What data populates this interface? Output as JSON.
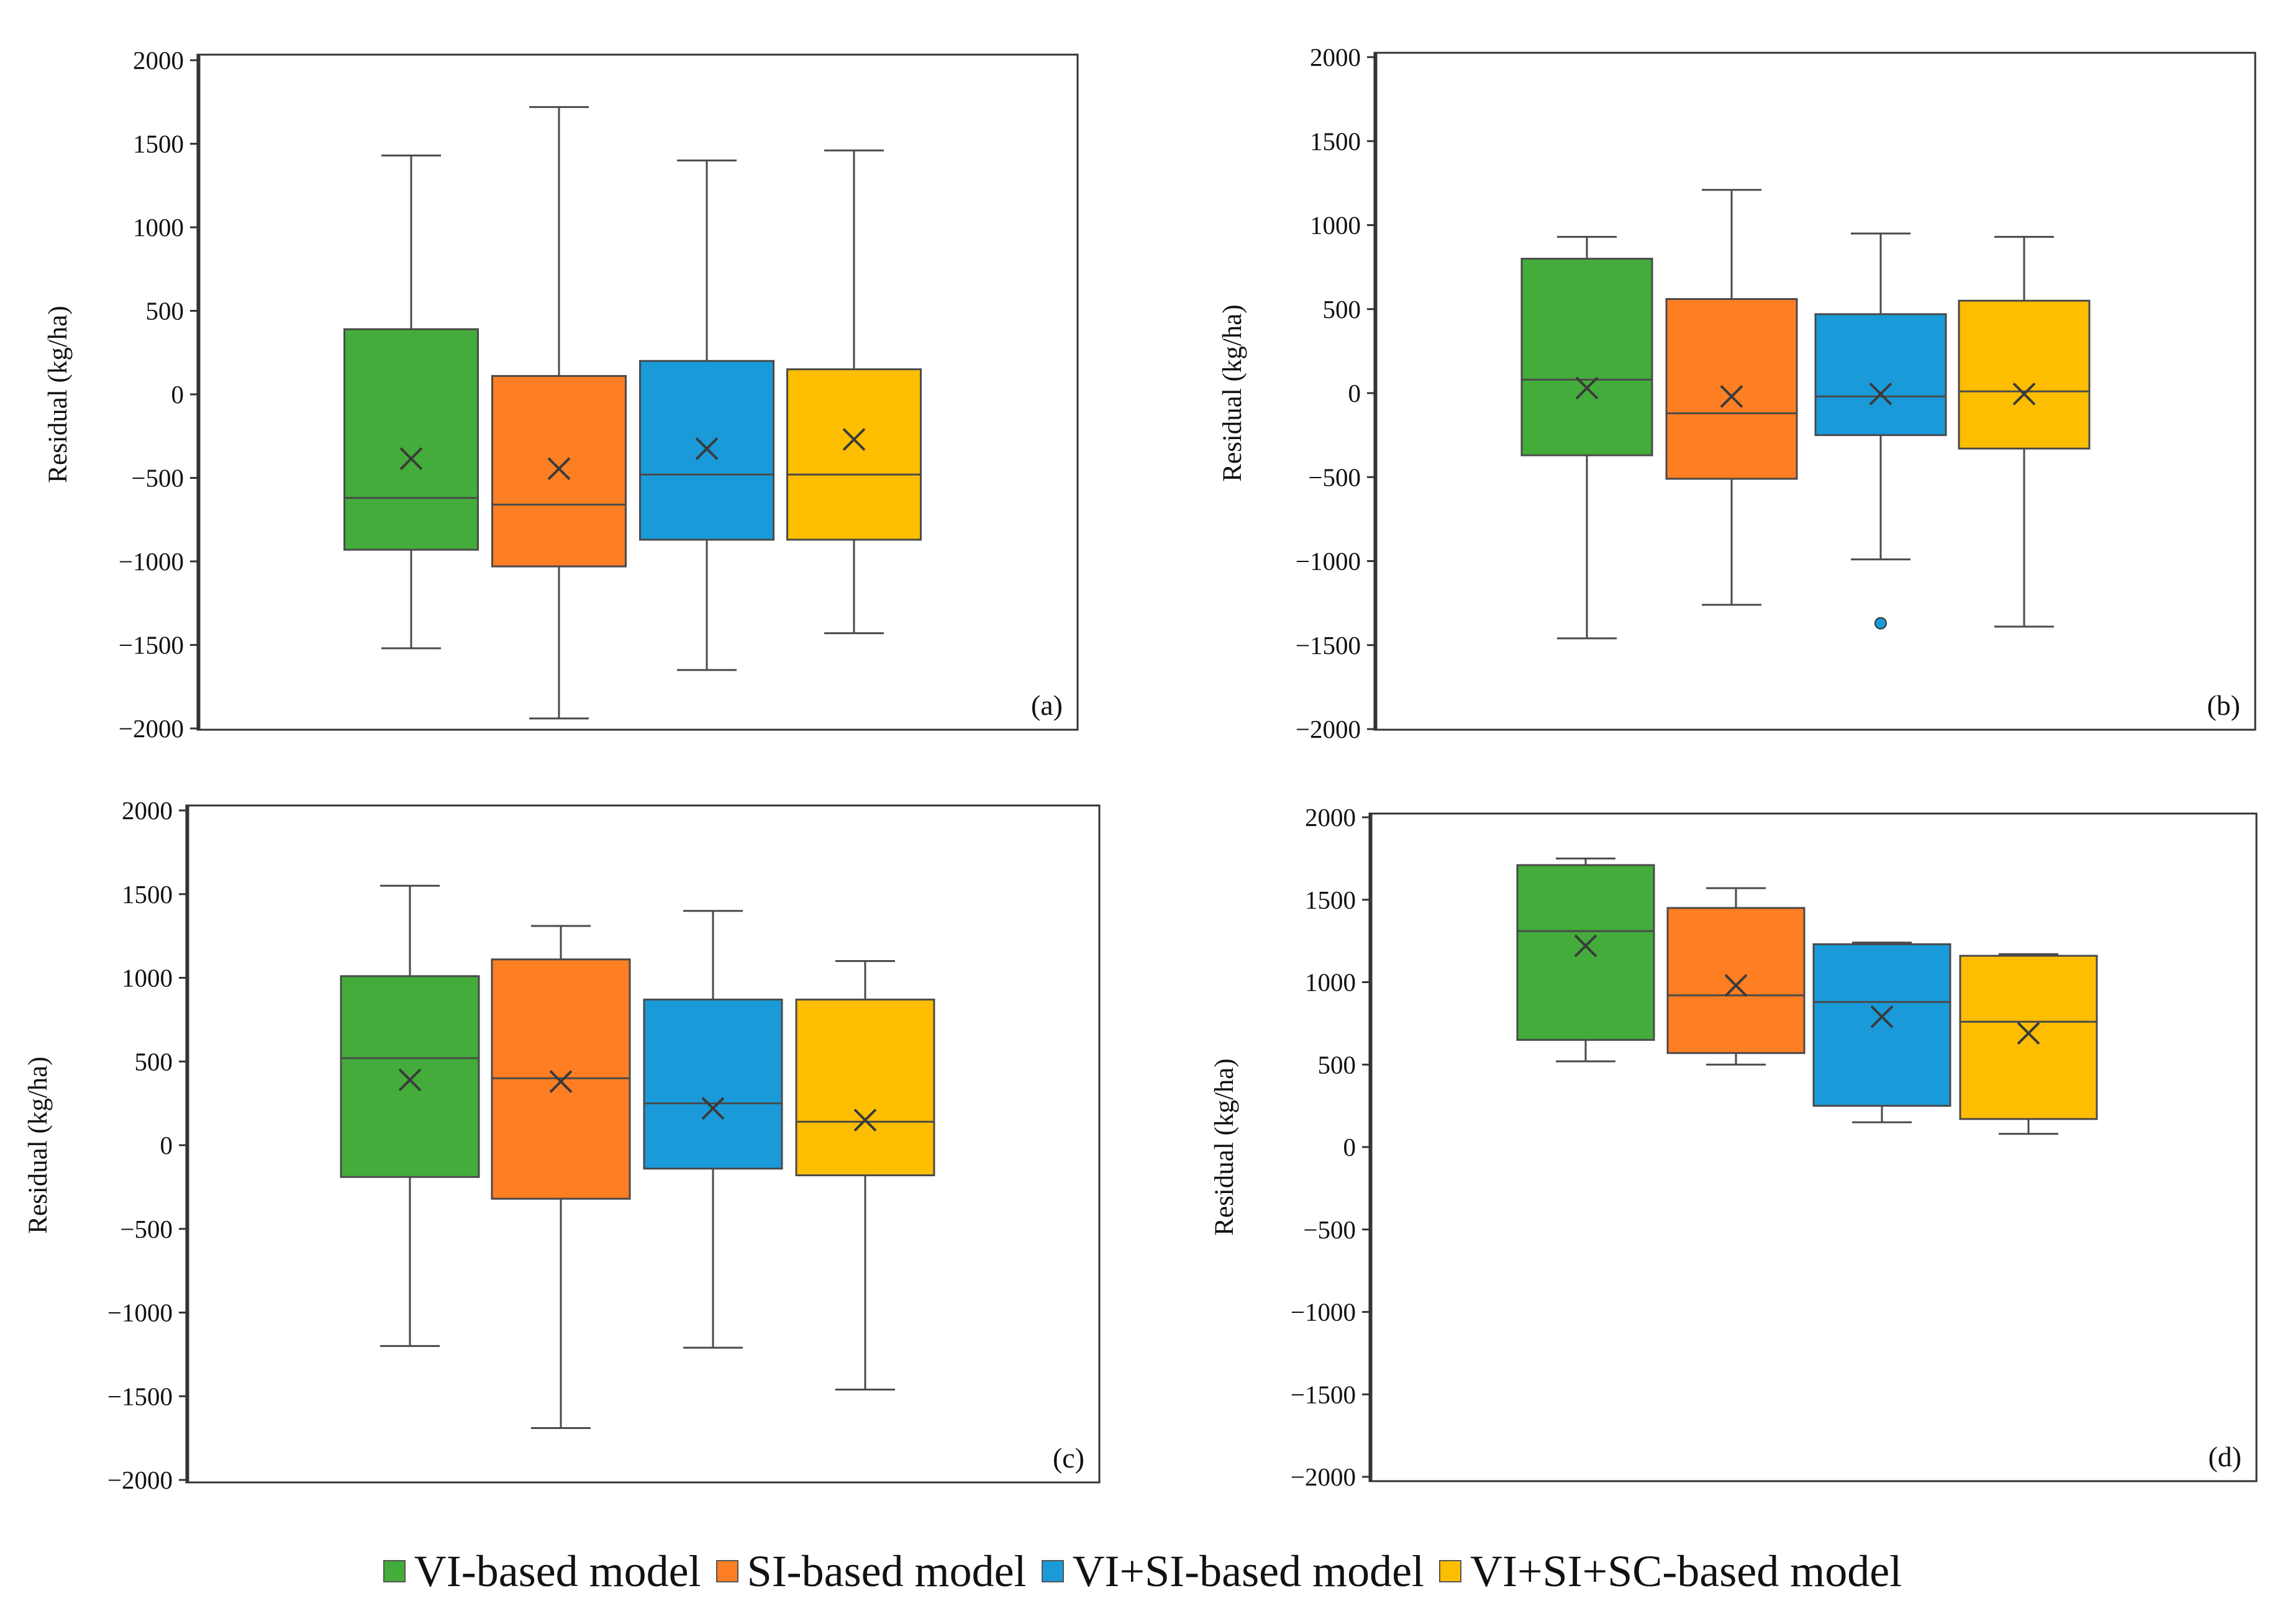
{
  "chart_data": [
    {
      "type": "box",
      "panel_label": "(a)",
      "ylabel": "Residual  (kg/ha)",
      "ylim": [
        -2000,
        2000
      ],
      "yticks": [
        2000,
        1500,
        1000,
        500,
        0,
        -500,
        -1000,
        -1500,
        -2000
      ],
      "series": [
        {
          "name": "VI-based model",
          "whisker_low": -1520,
          "q1": -930,
          "median": -620,
          "q3": 390,
          "whisker_high": 1430,
          "mean": -385,
          "outliers": []
        },
        {
          "name": "SI-based model",
          "whisker_low": -1940,
          "q1": -1030,
          "median": -660,
          "q3": 110,
          "whisker_high": 1720,
          "mean": -445,
          "outliers": []
        },
        {
          "name": "VI+SI-based model",
          "whisker_low": -1650,
          "q1": -870,
          "median": -480,
          "q3": 200,
          "whisker_high": 1400,
          "mean": -325,
          "outliers": []
        },
        {
          "name": "VI+SI+SC-based model",
          "whisker_low": -1430,
          "q1": -870,
          "median": -480,
          "q3": 150,
          "whisker_high": 1460,
          "mean": -270,
          "outliers": []
        }
      ]
    },
    {
      "type": "box",
      "panel_label": "(b)",
      "ylabel": "Residual  (kg/ha)",
      "ylim": [
        -2000,
        2000
      ],
      "yticks": [
        2000,
        1500,
        1000,
        500,
        0,
        -500,
        -1000,
        -1500,
        -2000
      ],
      "series": [
        {
          "name": "VI-based model",
          "whisker_low": -1460,
          "q1": -370,
          "median": 80,
          "q3": 800,
          "whisker_high": 930,
          "mean": 30,
          "outliers": []
        },
        {
          "name": "SI-based model",
          "whisker_low": -1260,
          "q1": -510,
          "median": -120,
          "q3": 560,
          "whisker_high": 1210,
          "mean": -20,
          "outliers": []
        },
        {
          "name": "VI+SI-based model",
          "whisker_low": -990,
          "q1": -250,
          "median": -20,
          "q3": 470,
          "whisker_high": 950,
          "mean": -5,
          "outliers": [
            -1370
          ]
        },
        {
          "name": "VI+SI+SC-based model",
          "whisker_low": -1390,
          "q1": -330,
          "median": 10,
          "q3": 550,
          "whisker_high": 930,
          "mean": -5,
          "outliers": []
        }
      ]
    },
    {
      "type": "box",
      "panel_label": "(c)",
      "ylabel": "Residual  (kg/ha)",
      "ylim": [
        -2000,
        2000
      ],
      "yticks": [
        2000,
        1500,
        1000,
        500,
        0,
        -500,
        -1000,
        -1500,
        -2000
      ],
      "series": [
        {
          "name": "VI-based model",
          "whisker_low": -1200,
          "q1": -190,
          "median": 520,
          "q3": 1010,
          "whisker_high": 1550,
          "mean": 390,
          "outliers": []
        },
        {
          "name": "SI-based model",
          "whisker_low": -1690,
          "q1": -320,
          "median": 400,
          "q3": 1110,
          "whisker_high": 1310,
          "mean": 380,
          "outliers": []
        },
        {
          "name": "VI+SI-based model",
          "whisker_low": -1210,
          "q1": -140,
          "median": 250,
          "q3": 870,
          "whisker_high": 1400,
          "mean": 220,
          "outliers": []
        },
        {
          "name": "VI+SI+SC-based model",
          "whisker_low": -1460,
          "q1": -180,
          "median": 140,
          "q3": 870,
          "whisker_high": 1100,
          "mean": 150,
          "outliers": []
        }
      ]
    },
    {
      "type": "box",
      "panel_label": "(d)",
      "ylabel": "Residual  (kg/ha)",
      "ylim": [
        -2000,
        2000
      ],
      "yticks": [
        2000,
        1500,
        1000,
        500,
        0,
        -500,
        -1000,
        -1500,
        -2000
      ],
      "series": [
        {
          "name": "VI-based model",
          "whisker_low": 520,
          "q1": 650,
          "median": 1310,
          "q3": 1710,
          "whisker_high": 1750,
          "mean": 1220,
          "outliers": []
        },
        {
          "name": "SI-based model",
          "whisker_low": 500,
          "q1": 570,
          "median": 920,
          "q3": 1450,
          "whisker_high": 1570,
          "mean": 980,
          "outliers": []
        },
        {
          "name": "VI+SI-based model",
          "whisker_low": 150,
          "q1": 250,
          "median": 880,
          "q3": 1230,
          "whisker_high": 1240,
          "mean": 790,
          "outliers": []
        },
        {
          "name": "VI+SI+SC-based model",
          "whisker_low": 80,
          "q1": 170,
          "median": 760,
          "q3": 1160,
          "whisker_high": 1170,
          "mean": 690,
          "outliers": []
        }
      ]
    }
  ],
  "legend": [
    {
      "label": "VI-based model",
      "color": "#43ac3a"
    },
    {
      "label": "SI-based model",
      "color": "#fd7e23"
    },
    {
      "label": "VI+SI-based model",
      "color": "#1a9ad9"
    },
    {
      "label": "VI+SI+SC-based model",
      "color": "#fdbe02"
    }
  ]
}
